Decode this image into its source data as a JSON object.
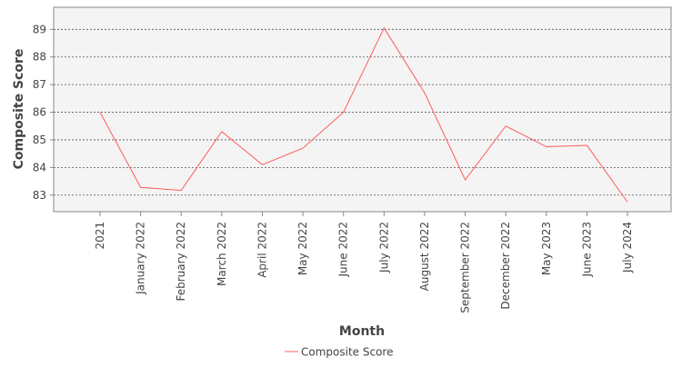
{
  "chart_data": {
    "type": "line",
    "xlabel": "Month",
    "ylabel": "Composite Score",
    "categories": [
      "2021",
      "January 2022",
      "February 2022",
      "March 2022",
      "April 2022",
      "May 2022",
      "June 2022",
      "July 2022",
      "August 2022",
      "September 2022",
      "December 2022",
      "May 2023",
      "June 2023",
      "July 2024"
    ],
    "series": [
      {
        "name": "Composite Score",
        "color": "#ff5c5c",
        "values": [
          86.0,
          83.28,
          83.17,
          85.3,
          84.1,
          84.7,
          86.0,
          89.05,
          86.7,
          83.55,
          85.5,
          84.75,
          84.8,
          82.75
        ]
      }
    ],
    "y_ticks": [
      83,
      84,
      85,
      86,
      87,
      88,
      89
    ],
    "ylim": [
      82.4,
      89.8
    ],
    "grid": true,
    "legend_position": "bottom",
    "colors": {
      "plot_background": "#f4f4f4",
      "grid": "#555555",
      "axis": "#888888"
    }
  }
}
